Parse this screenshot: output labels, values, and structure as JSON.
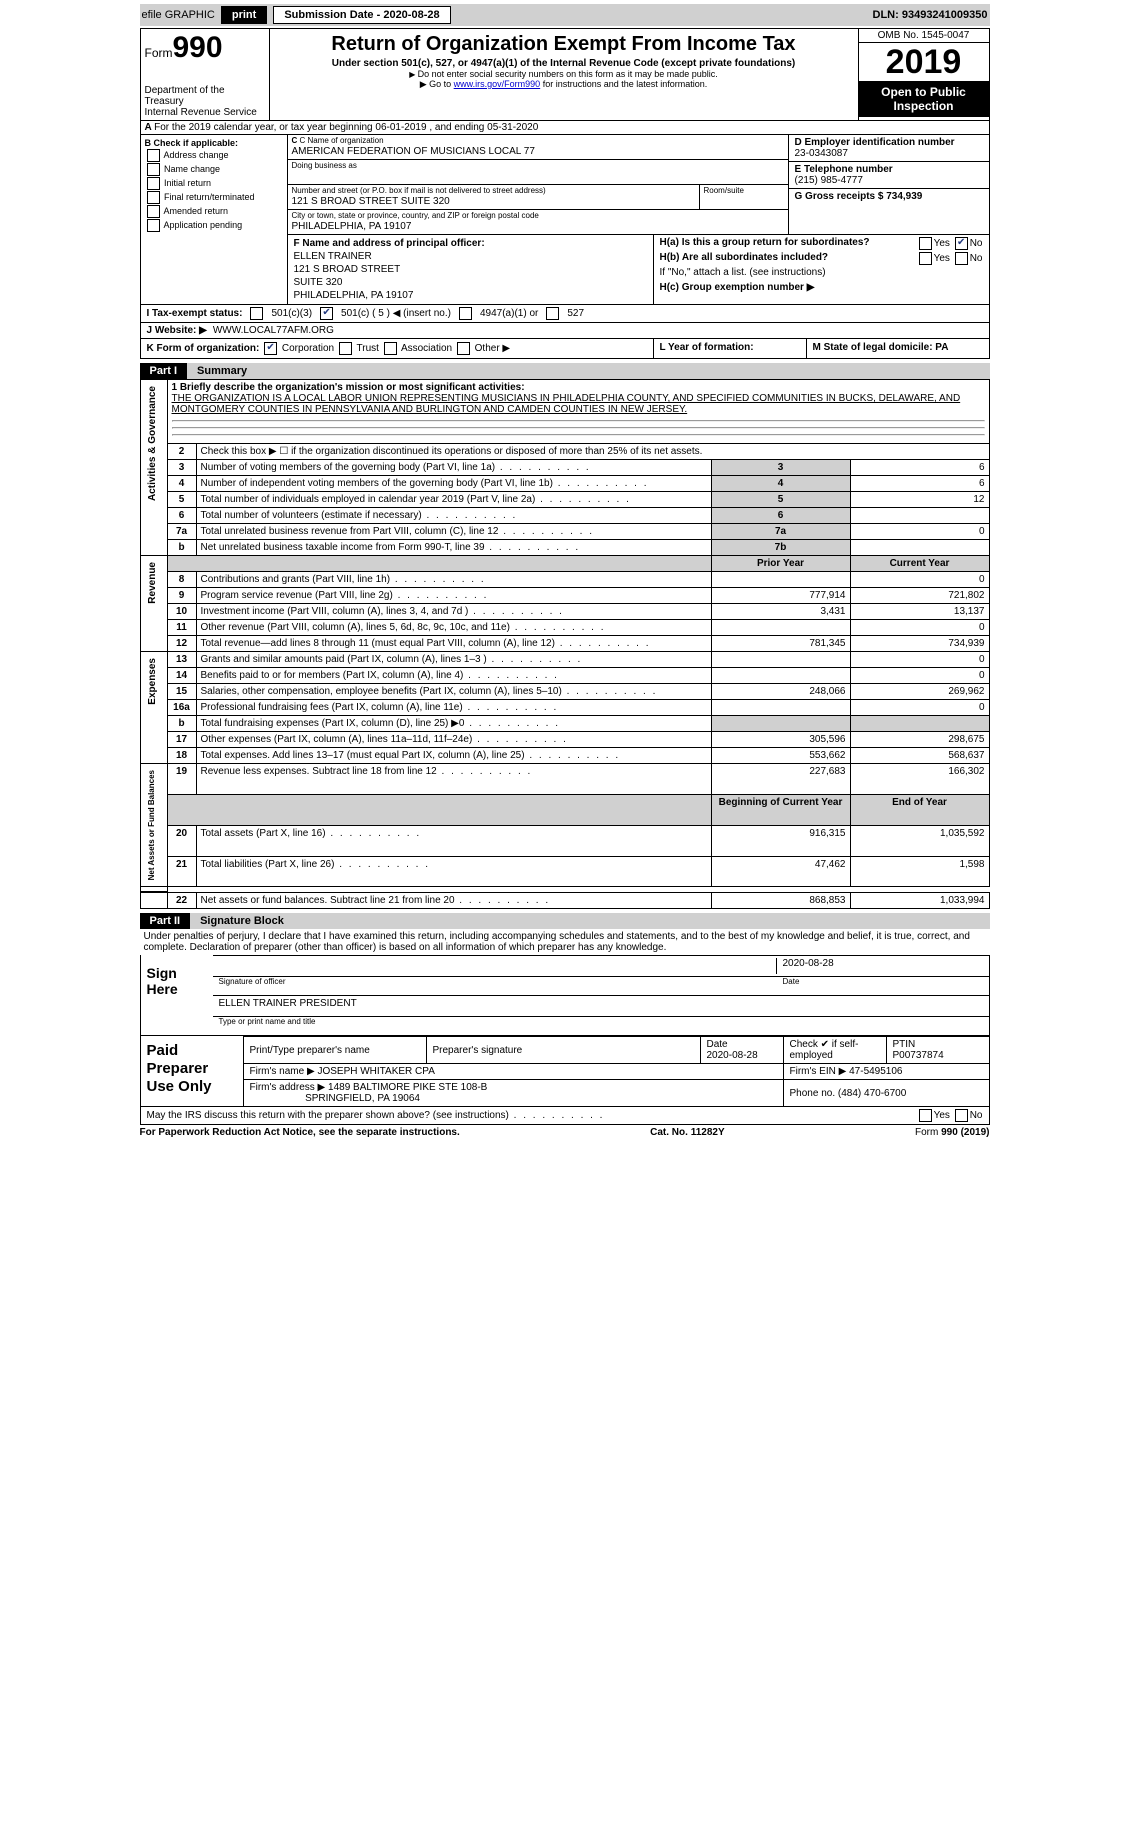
{
  "topbar": {
    "efile": "efile GRAPHIC",
    "print": "print",
    "submission": "Submission Date - 2020-08-28",
    "dln": "DLN: 93493241009350"
  },
  "header": {
    "form_label": "Form",
    "form_no": "990",
    "dept1": "Department of the Treasury",
    "dept2": "Internal Revenue Service",
    "title": "Return of Organization Exempt From Income Tax",
    "sub": "Under section 501(c), 527, or 4947(a)(1) of the Internal Revenue Code (except private foundations)",
    "note1": "Do not enter social security numbers on this form as it may be made public.",
    "note2_pre": "Go to ",
    "note2_link": "www.irs.gov/Form990",
    "note2_post": " for instructions and the latest information.",
    "omb": "OMB No. 1545-0047",
    "year": "2019",
    "open": "Open to Public Inspection"
  },
  "line_a": "For the 2019 calendar year, or tax year beginning 06-01-2019   , and ending 05-31-2020",
  "boxB": {
    "title": "B Check if applicable:",
    "items": [
      "Address change",
      "Name change",
      "Initial return",
      "Final return/terminated",
      "Amended return",
      "Application pending"
    ]
  },
  "boxC": {
    "name_label": "C Name of organization",
    "name": "AMERICAN FEDERATION OF MUSICIANS LOCAL 77",
    "dba_label": "Doing business as",
    "addr_label": "Number and street (or P.O. box if mail is not delivered to street address)",
    "addr": "121 S BROAD STREET SUITE 320",
    "room": "Room/suite",
    "city_label": "City or town, state or province, country, and ZIP or foreign postal code",
    "city": "PHILADELPHIA, PA  19107"
  },
  "boxD": {
    "label": "D Employer identification number",
    "val": "23-0343087"
  },
  "boxE": {
    "label": "E Telephone number",
    "val": "(215) 985-4777"
  },
  "boxG": {
    "label": "G Gross receipts $ 734,939"
  },
  "boxF": {
    "label": "F  Name and address of principal officer:",
    "lines": [
      "ELLEN TRAINER",
      "121 S BROAD STREET",
      "SUITE 320",
      "PHILADELPHIA, PA  19107"
    ]
  },
  "boxH": {
    "ha": "H(a)  Is this a group return for subordinates?",
    "hb": "H(b)  Are all subordinates included?",
    "hb_note": "If \"No,\" attach a list. (see instructions)",
    "hc": "H(c)  Group exemption number ▶"
  },
  "rowI": {
    "label": "I  Tax-exempt status:",
    "c5": "501(c) ( 5 ) ◀ (insert no.)",
    "a1": "4947(a)(1) or",
    "c527": "527",
    "c3": "501(c)(3)"
  },
  "rowJ": {
    "label": "J  Website: ▶",
    "val": "WWW.LOCAL77AFM.ORG"
  },
  "rowK": "K Form of organization:",
  "rowK_opts": [
    "Corporation",
    "Trust",
    "Association",
    "Other ▶"
  ],
  "rowL": "L Year of formation:",
  "rowM": "M State of legal domicile: PA",
  "part1": {
    "pt": "Part I",
    "ttl": "Summary"
  },
  "summary": {
    "q1_label": "1  Briefly describe the organization's mission or most significant activities:",
    "q1_text": "THE ORGANIZATION IS A LOCAL LABOR UNION REPRESENTING MUSICIANS IN PHILADELPHIA COUNTY, AND SPECIFIED COMMUNITIES IN BUCKS, DELAWARE, AND MONTGOMERY COUNTIES IN PENNSYLVANIA AND BURLINGTON AND CAMDEN COUNTIES IN NEW JERSEY.",
    "q2": "Check this box ▶ ☐  if the organization discontinued its operations or disposed of more than 25% of its net assets.",
    "rows_gov": [
      {
        "n": "3",
        "d": "Number of voting members of the governing body (Part VI, line 1a)",
        "b": "3",
        "v": "6"
      },
      {
        "n": "4",
        "d": "Number of independent voting members of the governing body (Part VI, line 1b)",
        "b": "4",
        "v": "6"
      },
      {
        "n": "5",
        "d": "Total number of individuals employed in calendar year 2019 (Part V, line 2a)",
        "b": "5",
        "v": "12"
      },
      {
        "n": "6",
        "d": "Total number of volunteers (estimate if necessary)",
        "b": "6",
        "v": ""
      },
      {
        "n": "7a",
        "d": "Total unrelated business revenue from Part VIII, column (C), line 12",
        "b": "7a",
        "v": "0"
      },
      {
        "n": "b",
        "d": "Net unrelated business taxable income from Form 990-T, line 39",
        "b": "7b",
        "v": ""
      }
    ],
    "hdr_prior": "Prior Year",
    "hdr_curr": "Current Year",
    "rows_rev": [
      {
        "n": "8",
        "d": "Contributions and grants (Part VIII, line 1h)",
        "p": "",
        "c": "0"
      },
      {
        "n": "9",
        "d": "Program service revenue (Part VIII, line 2g)",
        "p": "777,914",
        "c": "721,802"
      },
      {
        "n": "10",
        "d": "Investment income (Part VIII, column (A), lines 3, 4, and 7d )",
        "p": "3,431",
        "c": "13,137"
      },
      {
        "n": "11",
        "d": "Other revenue (Part VIII, column (A), lines 5, 6d, 8c, 9c, 10c, and 11e)",
        "p": "",
        "c": "0"
      },
      {
        "n": "12",
        "d": "Total revenue—add lines 8 through 11 (must equal Part VIII, column (A), line 12)",
        "p": "781,345",
        "c": "734,939"
      }
    ],
    "rows_exp": [
      {
        "n": "13",
        "d": "Grants and similar amounts paid (Part IX, column (A), lines 1–3 )",
        "p": "",
        "c": "0"
      },
      {
        "n": "14",
        "d": "Benefits paid to or for members (Part IX, column (A), line 4)",
        "p": "",
        "c": "0"
      },
      {
        "n": "15",
        "d": "Salaries, other compensation, employee benefits (Part IX, column (A), lines 5–10)",
        "p": "248,066",
        "c": "269,962"
      },
      {
        "n": "16a",
        "d": "Professional fundraising fees (Part IX, column (A), line 11e)",
        "p": "",
        "c": "0"
      },
      {
        "n": "b",
        "d": "Total fundraising expenses (Part IX, column (D), line 25) ▶0",
        "p": "shade",
        "c": "shade"
      },
      {
        "n": "17",
        "d": "Other expenses (Part IX, column (A), lines 11a–11d, 11f–24e)",
        "p": "305,596",
        "c": "298,675"
      },
      {
        "n": "18",
        "d": "Total expenses. Add lines 13–17 (must equal Part IX, column (A), line 25)",
        "p": "553,662",
        "c": "568,637"
      },
      {
        "n": "19",
        "d": "Revenue less expenses. Subtract line 18 from line 12",
        "p": "227,683",
        "c": "166,302"
      }
    ],
    "hdr_boy": "Beginning of Current Year",
    "hdr_eoy": "End of Year",
    "rows_net": [
      {
        "n": "20",
        "d": "Total assets (Part X, line 16)",
        "p": "916,315",
        "c": "1,035,592"
      },
      {
        "n": "21",
        "d": "Total liabilities (Part X, line 26)",
        "p": "47,462",
        "c": "1,598"
      },
      {
        "n": "22",
        "d": "Net assets or fund balances. Subtract line 21 from line 20",
        "p": "868,853",
        "c": "1,033,994"
      }
    ],
    "vlabels": [
      "Activities & Governance",
      "Revenue",
      "Expenses",
      "Net Assets or Fund Balances"
    ]
  },
  "part2": {
    "pt": "Part II",
    "ttl": "Signature Block"
  },
  "perjury": "Under penalties of perjury, I declare that I have examined this return, including accompanying schedules and statements, and to the best of my knowledge and belief, it is true, correct, and complete. Declaration of preparer (other than officer) is based on all information of which preparer has any knowledge.",
  "sign": {
    "here": "Sign Here",
    "sig": "Signature of officer",
    "date": "2020-08-28",
    "date_l": "Date",
    "name": "ELLEN TRAINER PRESIDENT",
    "name_l": "Type or print name and title"
  },
  "prep": {
    "label": "Paid Preparer Use Only",
    "h": [
      "Print/Type preparer's name",
      "Preparer's signature",
      "Date",
      "",
      "PTIN"
    ],
    "date": "2020-08-28",
    "chk": "Check ✔ if self-employed",
    "ptin": "P00737874",
    "firm_l": "Firm's name   ▶",
    "firm": "JOSEPH WHITAKER CPA",
    "ein_l": "Firm's EIN ▶",
    "ein": "47-5495106",
    "addr_l": "Firm's address ▶",
    "addr1": "1489 BALTIMORE PIKE STE 108-B",
    "addr2": "SPRINGFIELD, PA  19064",
    "ph_l": "Phone no.",
    "ph": "(484) 470-6700"
  },
  "discuss": "May the IRS discuss this return with the preparer shown above? (see instructions)",
  "foot": {
    "l": "For Paperwork Reduction Act Notice, see the separate instructions.",
    "c": "Cat. No. 11282Y",
    "r": "Form 990 (2019)"
  }
}
